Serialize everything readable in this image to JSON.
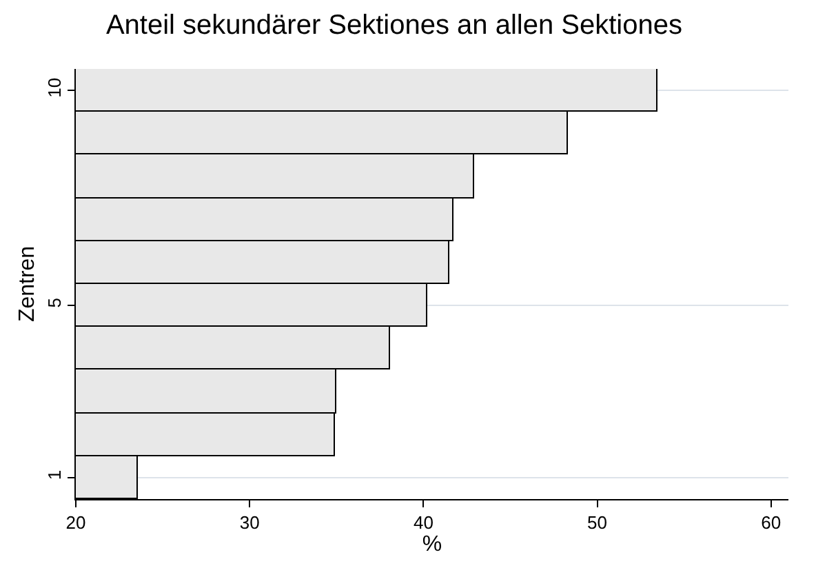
{
  "chart_data": {
    "type": "bar",
    "orientation": "horizontal",
    "title": "Anteil sekundärer Sektiones an allen Sektiones",
    "xlabel": "%",
    "ylabel": "Zentren",
    "categories": [
      "10",
      null,
      null,
      null,
      null,
      "5",
      null,
      null,
      null,
      "1"
    ],
    "values": [
      53.5,
      48.3,
      42.9,
      41.7,
      41.5,
      40.2,
      38.1,
      35.0,
      34.9,
      23.6
    ],
    "color": "#e8e8e8",
    "xlim": [
      20,
      61
    ],
    "xticks": [
      20,
      30,
      40,
      50,
      60
    ],
    "grid": "y",
    "legend": false
  }
}
